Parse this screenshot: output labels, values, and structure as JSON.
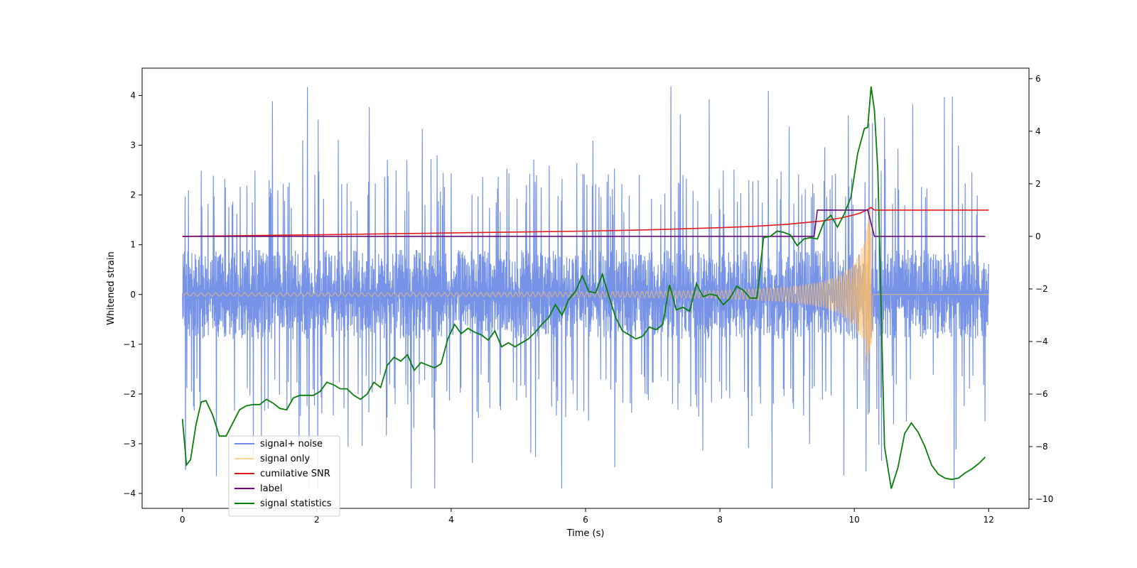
{
  "chart_data": {
    "type": "line",
    "title": "",
    "xlabel": "Time (s)",
    "ylabel": "Whitened strain",
    "y2label": "",
    "xlim": [
      -0.6,
      12.6
    ],
    "ylim": [
      -4.3,
      4.55
    ],
    "y2lim": [
      -10.35,
      6.4
    ],
    "xticks": [
      0,
      2,
      4,
      6,
      8,
      10,
      12
    ],
    "yticks": [
      -4,
      -3,
      -2,
      -1,
      0,
      1,
      2,
      3,
      4
    ],
    "y2ticks": [
      -10,
      -8,
      -6,
      -4,
      -2,
      0,
      2,
      4,
      6
    ],
    "grid": false,
    "legend_position": "lower-left",
    "series": [
      {
        "name": "signal+ noise",
        "axis": "left",
        "color": "#6f8de6",
        "description": "noisy whitened strain, roughly uniform band between -2 and 2 with spikes up to about 4.2 and down to about -3.9",
        "t_range": [
          0,
          12
        ],
        "band_low": -1.6,
        "band_high": 1.6,
        "max": 4.2,
        "min": -3.9
      },
      {
        "name": "signal only",
        "axis": "left",
        "color": "#ffbf69",
        "description": "chirp signal near zero until ~8 s, amplitude growing to about 1.9 near t=10.25 s, then zero",
        "x": [
          0,
          2,
          4,
          6,
          8,
          9,
          9.5,
          9.8,
          10,
          10.15,
          10.25,
          10.28,
          12
        ],
        "envelope": [
          0.03,
          0.035,
          0.04,
          0.05,
          0.08,
          0.15,
          0.25,
          0.4,
          0.65,
          1.05,
          1.9,
          0,
          0
        ]
      },
      {
        "name": "cumilative SNR",
        "axis": "right",
        "color": "#e31a1c",
        "x": [
          0,
          2,
          4,
          6,
          7,
          8,
          8.5,
          9,
          9.5,
          9.8,
          10,
          10.1,
          10.2,
          10.25,
          10.3,
          12
        ],
        "values": [
          0.0,
          0.06,
          0.13,
          0.2,
          0.25,
          0.33,
          0.38,
          0.46,
          0.58,
          0.7,
          0.82,
          0.9,
          1.02,
          1.1,
          1.0,
          1.0
        ]
      },
      {
        "name": "label",
        "axis": "right",
        "color": "#6a0a7a",
        "x": [
          0,
          9.4,
          9.45,
          10.2,
          10.3,
          11.95
        ],
        "values": [
          0,
          0,
          1,
          1,
          0,
          0
        ]
      },
      {
        "name": "signal statistics",
        "axis": "right",
        "color": "#0a7d0a",
        "x": [
          0,
          0.06,
          0.12,
          0.2,
          0.28,
          0.35,
          0.45,
          0.55,
          0.65,
          0.75,
          0.85,
          0.95,
          1.05,
          1.15,
          1.25,
          1.35,
          1.45,
          1.55,
          1.65,
          1.75,
          1.85,
          1.95,
          2.05,
          2.15,
          2.25,
          2.35,
          2.45,
          2.55,
          2.65,
          2.75,
          2.85,
          2.95,
          3.05,
          3.15,
          3.25,
          3.35,
          3.45,
          3.55,
          3.65,
          3.75,
          3.85,
          3.95,
          4.05,
          4.15,
          4.25,
          4.35,
          4.45,
          4.55,
          4.65,
          4.75,
          4.85,
          4.95,
          5.05,
          5.15,
          5.25,
          5.35,
          5.45,
          5.55,
          5.65,
          5.75,
          5.85,
          5.95,
          6.05,
          6.15,
          6.25,
          6.35,
          6.45,
          6.55,
          6.65,
          6.75,
          6.85,
          6.95,
          7.05,
          7.15,
          7.25,
          7.35,
          7.45,
          7.55,
          7.65,
          7.75,
          7.85,
          7.95,
          8.05,
          8.15,
          8.25,
          8.35,
          8.45,
          8.55,
          8.65,
          8.75,
          8.85,
          8.95,
          9.05,
          9.15,
          9.25,
          9.35,
          9.45,
          9.55,
          9.65,
          9.75,
          9.85,
          9.95,
          10.05,
          10.15,
          10.2,
          10.25,
          10.3,
          10.35,
          10.45,
          10.55,
          10.65,
          10.75,
          10.85,
          10.95,
          11.05,
          11.15,
          11.25,
          11.35,
          11.45,
          11.55,
          11.65,
          11.75,
          11.85,
          11.95
        ],
        "values": [
          -6.95,
          -8.7,
          -8.5,
          -7.2,
          -6.3,
          -6.25,
          -6.8,
          -7.6,
          -7.6,
          -7.1,
          -6.6,
          -6.45,
          -6.4,
          -6.4,
          -6.2,
          -6.35,
          -6.55,
          -6.6,
          -6.15,
          -6.05,
          -6.05,
          -6.05,
          -5.9,
          -5.55,
          -5.65,
          -5.8,
          -5.8,
          -6.05,
          -6.2,
          -6.0,
          -5.55,
          -5.75,
          -4.9,
          -4.6,
          -4.75,
          -4.5,
          -5.1,
          -4.8,
          -4.9,
          -5.0,
          -4.85,
          -3.9,
          -3.35,
          -3.7,
          -3.5,
          -3.65,
          -3.75,
          -3.95,
          -3.6,
          -4.2,
          -4.05,
          -4.2,
          -4.05,
          -3.9,
          -3.65,
          -3.35,
          -3.1,
          -2.6,
          -3.0,
          -2.4,
          -2.1,
          -1.5,
          -2.1,
          -2.15,
          -1.45,
          -2.3,
          -3.1,
          -3.6,
          -3.75,
          -3.9,
          -3.8,
          -3.45,
          -3.55,
          -3.35,
          -1.85,
          -2.8,
          -2.7,
          -2.85,
          -1.8,
          -2.3,
          -2.2,
          -2.25,
          -2.6,
          -2.35,
          -1.9,
          -2.05,
          -2.35,
          -2.35,
          -0.05,
          0.0,
          0.2,
          0.15,
          0.05,
          -0.35,
          -0.1,
          -0.05,
          -0.1,
          0.55,
          0.8,
          0.35,
          0.85,
          1.5,
          3.15,
          4.1,
          4.15,
          5.7,
          4.8,
          2.5,
          -8.0,
          -9.6,
          -8.8,
          -7.5,
          -7.1,
          -7.45,
          -8.0,
          -8.7,
          -9.05,
          -9.2,
          -9.25,
          -9.2,
          -9.0,
          -8.85,
          -8.65,
          -8.4
        ]
      }
    ]
  }
}
